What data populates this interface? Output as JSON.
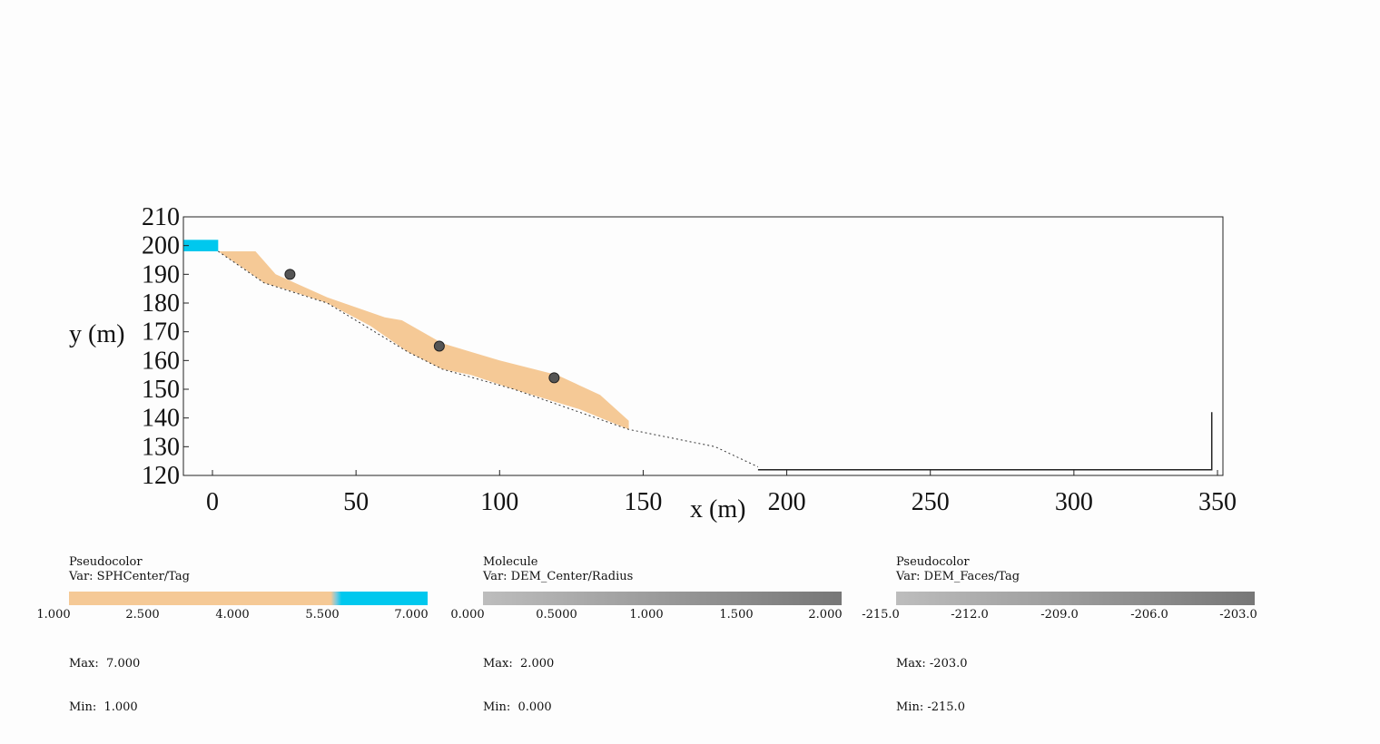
{
  "chart_data": {
    "type": "scatter",
    "xlabel": "x (m)",
    "ylabel": "y (m)",
    "xlim": [
      -10,
      350
    ],
    "ylim": [
      120,
      210
    ],
    "x_ticks": [
      "0",
      "50",
      "100",
      "150",
      "200",
      "250",
      "300",
      "350"
    ],
    "y_ticks": [
      "210",
      "200",
      "190",
      "180",
      "170",
      "160",
      "150",
      "140",
      "130",
      "120"
    ],
    "sph_blue_block": {
      "x": [
        -10,
        2
      ],
      "y": [
        198,
        202
      ],
      "color": "#00c8ee"
    },
    "sph_material_polygon": {
      "color": "#f5c996",
      "points": [
        [
          2,
          198
        ],
        [
          15,
          198
        ],
        [
          22,
          190
        ],
        [
          40,
          182
        ],
        [
          60,
          175
        ],
        [
          66,
          174
        ],
        [
          80,
          166
        ],
        [
          100,
          160
        ],
        [
          120,
          155
        ],
        [
          135,
          148
        ],
        [
          145,
          139
        ],
        [
          145,
          136
        ],
        [
          128,
          143
        ],
        [
          105,
          150
        ],
        [
          90,
          155
        ],
        [
          80,
          157
        ],
        [
          68,
          163
        ],
        [
          55,
          172
        ],
        [
          40,
          180
        ],
        [
          28,
          184
        ],
        [
          18,
          187
        ],
        [
          11,
          192
        ],
        [
          2,
          198
        ]
      ]
    },
    "dem_particles": [
      {
        "x": 27,
        "y": 190
      },
      {
        "x": 79,
        "y": 165
      },
      {
        "x": 119,
        "y": 154
      }
    ],
    "terrain_dotted": [
      [
        2,
        198
      ],
      [
        18,
        187
      ],
      [
        40,
        180
      ],
      [
        68,
        163
      ],
      [
        80,
        157
      ],
      [
        105,
        150
      ],
      [
        145,
        136
      ],
      [
        175,
        130
      ],
      [
        190,
        123
      ]
    ],
    "terrain_solid": [
      [
        190,
        122
      ],
      [
        348,
        122
      ],
      [
        348,
        142
      ]
    ]
  },
  "legends": [
    {
      "title": "Pseudocolor",
      "var": "Var: SPHCenter/Tag",
      "ticks": [
        "1.000",
        "2.500",
        "4.000",
        "5.500",
        "7.000"
      ],
      "max": "Max:  7.000",
      "min": "Min:  1.000",
      "colors": [
        "#f5c996",
        "#00c8ee"
      ]
    },
    {
      "title": "Molecule",
      "var": "Var: DEM_Center/Radius",
      "ticks": [
        "0.000",
        "0.5000",
        "1.000",
        "1.500",
        "2.000"
      ],
      "max": "Max:  2.000",
      "min": "Min:  0.000",
      "colors": [
        "#bdbdbd",
        "#777777"
      ]
    },
    {
      "title": "Pseudocolor",
      "var": "Var: DEM_Faces/Tag",
      "ticks": [
        "-215.0",
        "-212.0",
        "-209.0",
        "-206.0",
        "-203.0"
      ],
      "max": "Max: -203.0",
      "min": "Min: -215.0",
      "colors": [
        "#bdbdbd",
        "#777777"
      ]
    }
  ]
}
